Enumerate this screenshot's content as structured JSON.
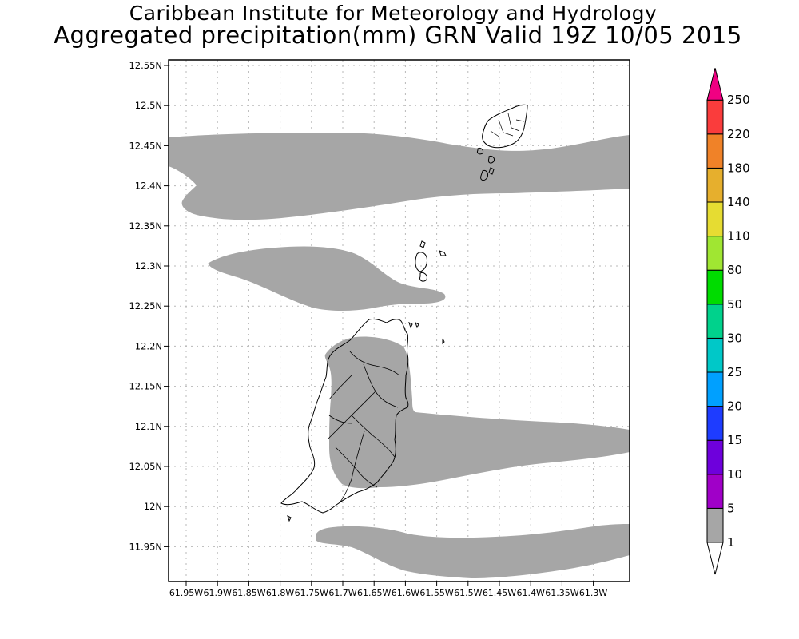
{
  "header": {
    "title": "Caribbean Institute for Meteorology and Hydrology",
    "subtitle": "Aggregated precipitation(mm) GRN Valid 19Z 10/05 2015"
  },
  "map": {
    "lat_ticks": [
      "12.55N",
      "12.5N",
      "12.45N",
      "12.4N",
      "12.35N",
      "12.3N",
      "12.25N",
      "12.2N",
      "12.15N",
      "12.1N",
      "12.05N",
      "12N",
      "11.95N"
    ],
    "lon_ticks": [
      "61.95W",
      "61.9W",
      "61.85W",
      "61.8W",
      "61.75W",
      "61.7W",
      "61.65W",
      "61.6W",
      "61.55W",
      "61.5W",
      "61.45W",
      "61.4W",
      "61.35W",
      "61.3W"
    ],
    "precip_fill_color": "#a6a6a6",
    "grid": true
  },
  "colorbar": {
    "levels": [
      {
        "label": "1",
        "color": "#ffffff"
      },
      {
        "label": "5",
        "color": "#a6a6a6"
      },
      {
        "label": "10",
        "color": "#a000c8"
      },
      {
        "label": "15",
        "color": "#6e00dc"
      },
      {
        "label": "20",
        "color": "#1e3cff"
      },
      {
        "label": "25",
        "color": "#00a0ff"
      },
      {
        "label": "30",
        "color": "#00c8c8"
      },
      {
        "label": "50",
        "color": "#00d28c"
      },
      {
        "label": "80",
        "color": "#00dc00"
      },
      {
        "label": "110",
        "color": "#a0e632"
      },
      {
        "label": "140",
        "color": "#e6dc32"
      },
      {
        "label": "180",
        "color": "#e6af2d"
      },
      {
        "label": "220",
        "color": "#f08228"
      },
      {
        "label": "250",
        "color": "#fa3c3c"
      }
    ],
    "top_color": "#f00082"
  }
}
